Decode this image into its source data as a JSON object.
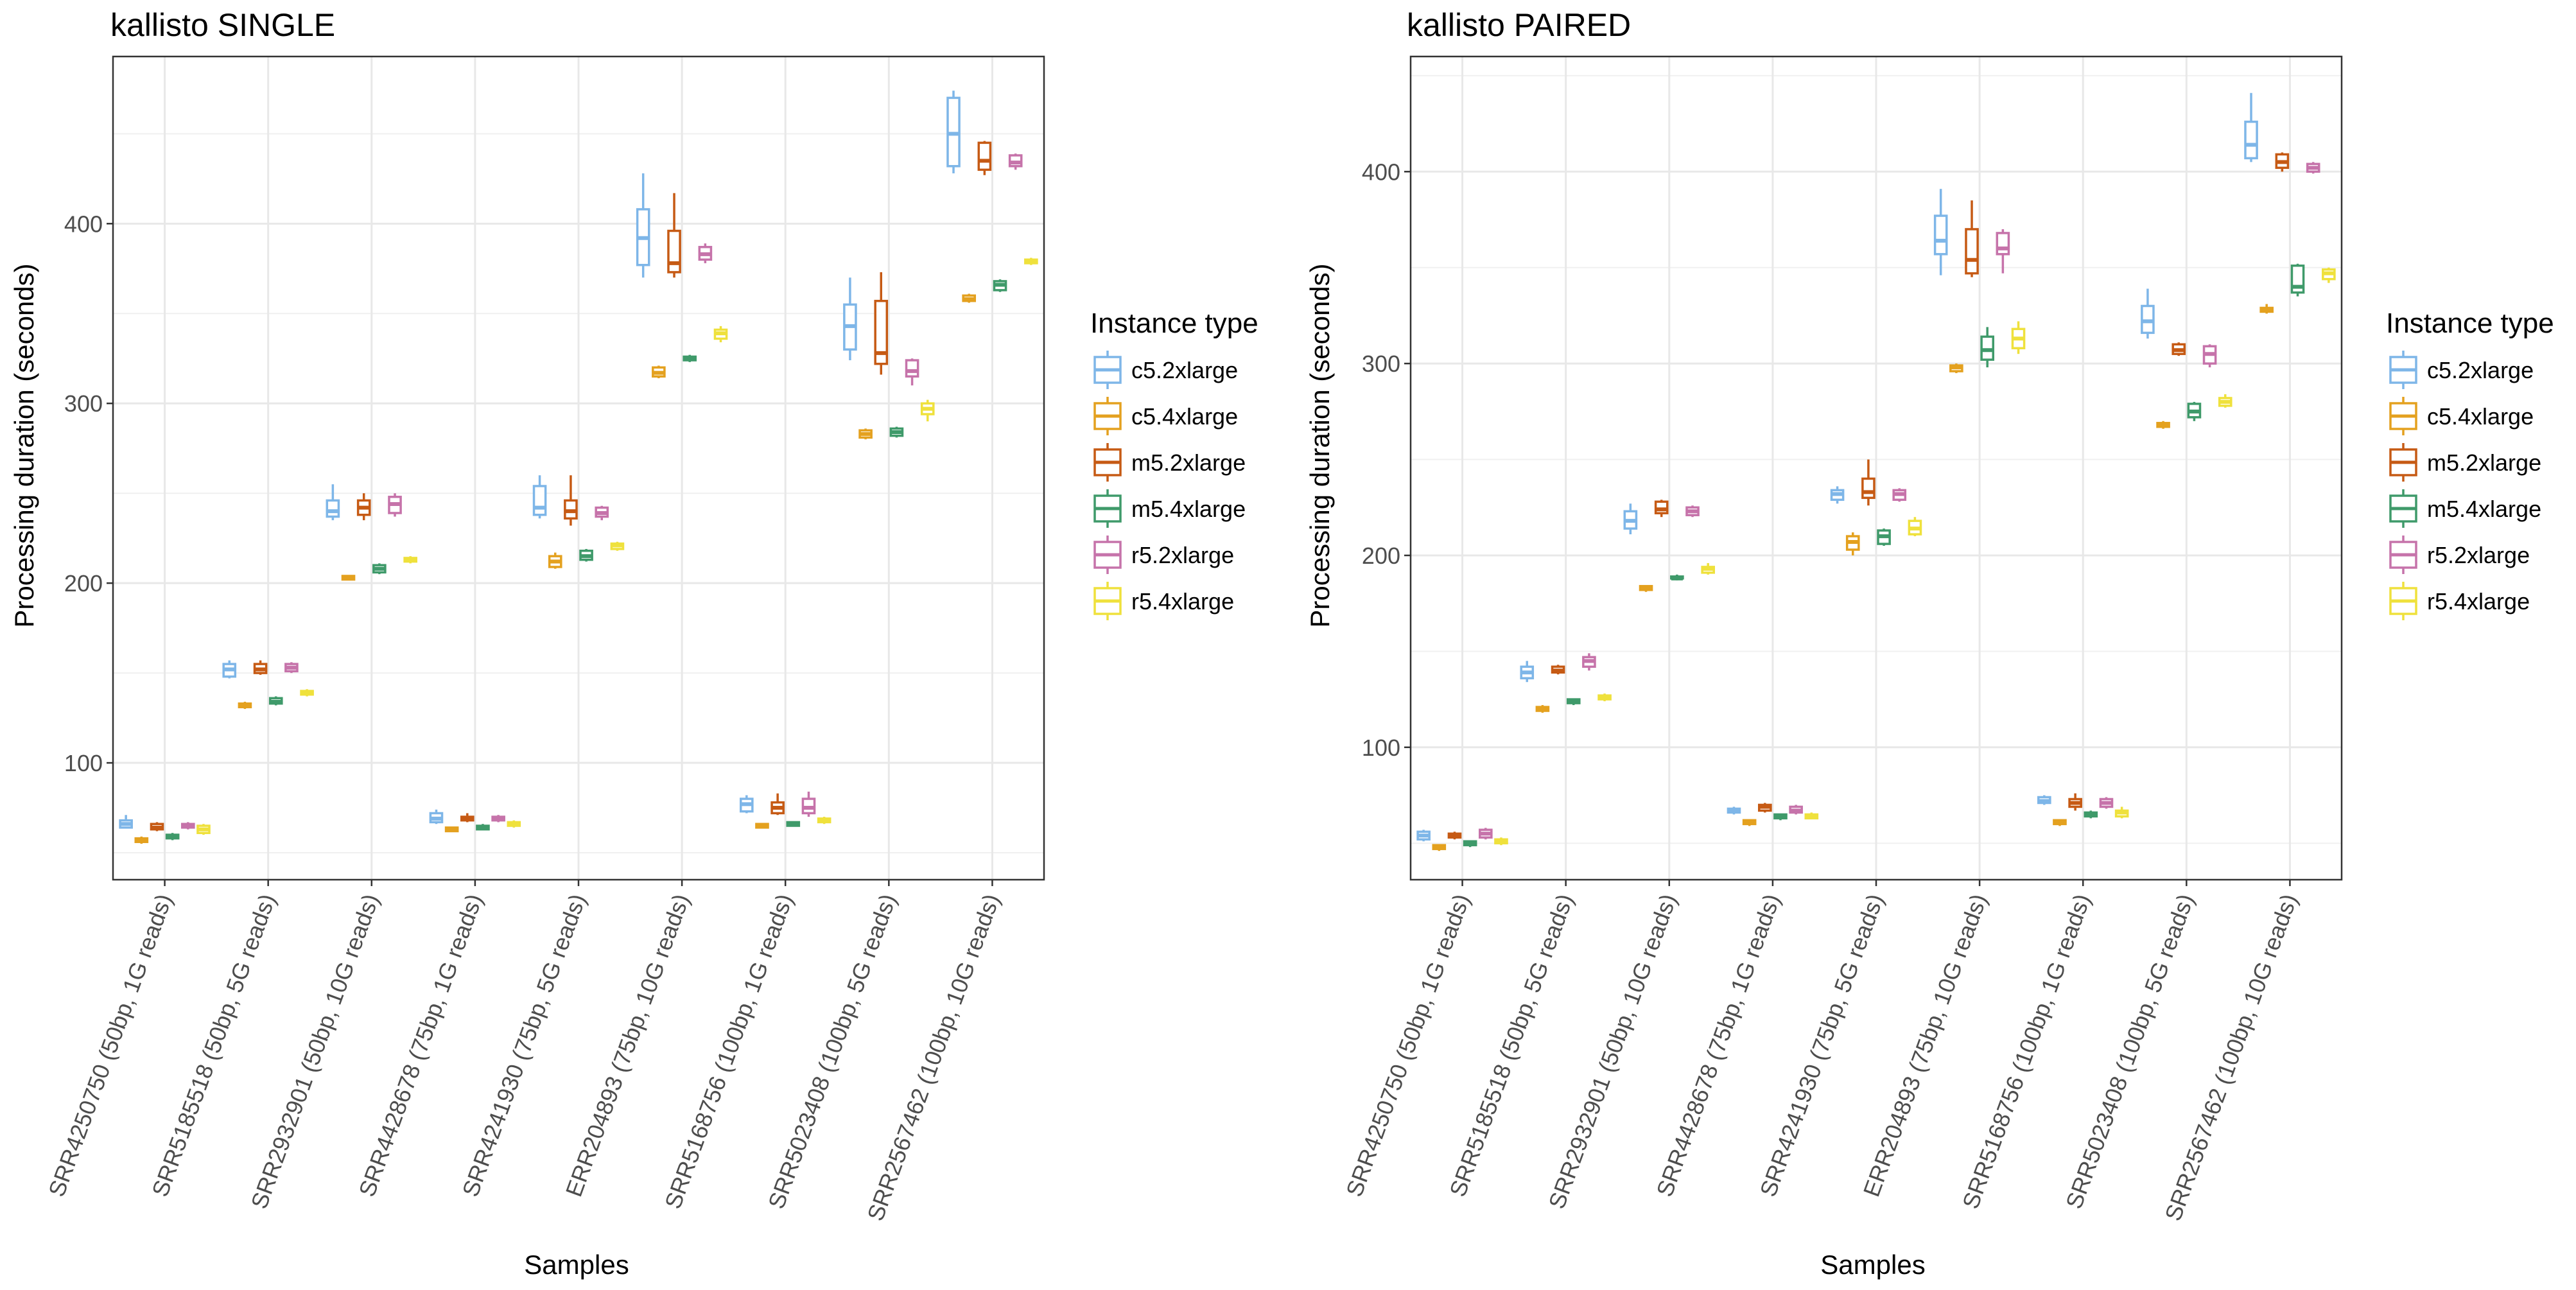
{
  "legend": {
    "title": "Instance type",
    "items": [
      {
        "label": "c5.2xlarge",
        "color": "#7EB6E8"
      },
      {
        "label": "c5.4xlarge",
        "color": "#E4A11F"
      },
      {
        "label": "m5.2xlarge",
        "color": "#C65A14"
      },
      {
        "label": "m5.4xlarge",
        "color": "#3F9A6A"
      },
      {
        "label": "r5.2xlarge",
        "color": "#C673AA"
      },
      {
        "label": "r5.4xlarge",
        "color": "#EFE13C"
      }
    ]
  },
  "chart_data": [
    {
      "type": "box",
      "title": "kallisto SINGLE",
      "xlabel": "Samples",
      "ylabel": "Processing duration (seconds)",
      "ylim": [
        35,
        493
      ],
      "yticks": [
        100,
        200,
        300,
        400
      ],
      "grid": true,
      "legend_position": "right",
      "categories": [
        "SRR4250750 (50bp, 1G reads)",
        "SRR5185518 (50bp, 5G reads)",
        "SRR2932901 (50bp, 10G reads)",
        "SRR4428678 (75bp, 1G reads)",
        "SRR4241930 (75bp, 5G reads)",
        "ERR204893 (75bp, 10G reads)",
        "SRR5168756 (100bp, 1G reads)",
        "SRR5023408 (100bp, 5G reads)",
        "SRR2567462 (100bp, 10G reads)"
      ],
      "series": [
        {
          "name": "c5.2xlarge",
          "boxes": [
            [
              64,
              64,
              66,
              68,
              71
            ],
            [
              147,
              148,
              152,
              155,
              157
            ],
            [
              235,
              237,
              240,
              246,
              255
            ],
            [
              66,
              67,
              69,
              72,
              74
            ],
            [
              236,
              238,
              242,
              254,
              260
            ],
            [
              370,
              377,
              392,
              408,
              428
            ],
            [
              72,
              73,
              77,
              80,
              82
            ],
            [
              324,
              330,
              343,
              355,
              370
            ],
            [
              428,
              432,
              450,
              470,
              474
            ]
          ]
        },
        {
          "name": "c5.4xlarge",
          "boxes": [
            [
              55,
              56,
              57,
              58,
              59
            ],
            [
              130,
              131,
              132,
              133,
              134
            ],
            [
              202,
              202,
              203,
              204,
              204
            ],
            [
              62,
              62,
              63,
              64,
              64
            ],
            [
              208,
              209,
              212,
              215,
              217
            ],
            [
              314,
              315,
              317,
              320,
              321
            ],
            [
              64,
              64,
              65,
              66,
              66
            ],
            [
              280,
              281,
              283,
              285,
              286
            ],
            [
              356,
              357,
              358,
              360,
              361
            ]
          ]
        },
        {
          "name": "m5.2xlarge",
          "boxes": [
            [
              62,
              63,
              64,
              66,
              67
            ],
            [
              149,
              150,
              152,
              155,
              157
            ],
            [
              235,
              238,
              242,
              246,
              250
            ],
            [
              67,
              68,
              69,
              70,
              72
            ],
            [
              232,
              236,
              240,
              246,
              260
            ],
            [
              370,
              373,
              378,
              396,
              417
            ],
            [
              71,
              72,
              75,
              78,
              83
            ],
            [
              316,
              322,
              328,
              357,
              373
            ],
            [
              427,
              430,
              435,
              445,
              446
            ]
          ]
        },
        {
          "name": "m5.4xlarge",
          "boxes": [
            [
              57,
              58,
              59,
              60,
              61
            ],
            [
              132,
              133,
              134,
              136,
              137
            ],
            [
              205,
              206,
              208,
              210,
              211
            ],
            [
              63,
              63,
              64,
              65,
              66
            ],
            [
              212,
              213,
              215,
              218,
              219
            ],
            [
              323,
              324,
              325,
              326,
              327
            ],
            [
              65,
              65,
              66,
              67,
              67
            ],
            [
              281,
              282,
              284,
              286,
              287
            ],
            [
              362,
              363,
              366,
              368,
              369
            ]
          ]
        },
        {
          "name": "r5.2xlarge",
          "boxes": [
            [
              63,
              64,
              65,
              66,
              67
            ],
            [
              150,
              151,
              153,
              155,
              156
            ],
            [
              237,
              239,
              244,
              248,
              250
            ],
            [
              67,
              68,
              69,
              70,
              71
            ],
            [
              235,
              237,
              239,
              242,
              243
            ],
            [
              378,
              380,
              383,
              387,
              389
            ],
            [
              70,
              72,
              75,
              80,
              84
            ],
            [
              310,
              315,
              318,
              324,
              325
            ],
            [
              430,
              432,
              434,
              438,
              439
            ]
          ]
        },
        {
          "name": "r5.4xlarge",
          "boxes": [
            [
              60,
              61,
              63,
              65,
              66
            ],
            [
              137,
              138,
              139,
              140,
              141
            ],
            [
              211,
              212,
              213,
              214,
              215
            ],
            [
              64,
              65,
              66,
              67,
              68
            ],
            [
              218,
              219,
              221,
              222,
              223
            ],
            [
              334,
              336,
              339,
              341,
              343
            ],
            [
              66,
              67,
              68,
              69,
              70
            ],
            [
              290,
              294,
              297,
              300,
              302
            ],
            [
              377,
              378,
              379,
              380,
              381
            ]
          ]
        }
      ]
    },
    {
      "type": "box",
      "title": "kallisto PAIRED",
      "xlabel": "Samples",
      "ylabel": "Processing duration (seconds)",
      "ylim": [
        31,
        460
      ],
      "yticks": [
        100,
        200,
        300,
        400
      ],
      "grid": true,
      "legend_position": "right",
      "categories": [
        "SRR4250750 (50bp, 1G reads)",
        "SRR5185518 (50bp, 5G reads)",
        "SRR2932901 (50bp, 10G reads)",
        "SRR4428678 (75bp, 1G reads)",
        "SRR4241930 (75bp, 5G reads)",
        "ERR204893 (75bp, 10G reads)",
        "SRR5168756 (100bp, 1G reads)",
        "SRR5023408 (100bp, 5G reads)",
        "SRR2567462 (100bp, 10G reads)"
      ],
      "series": [
        {
          "name": "c5.2xlarge",
          "boxes": [
            [
              51,
              52,
              54,
              56,
              57
            ],
            [
              134,
              136,
              139,
              142,
              145
            ],
            [
              211,
              214,
              218,
              223,
              227
            ],
            [
              65,
              66,
              67,
              68,
              69
            ],
            [
              227,
              229,
              232,
              234,
              236
            ],
            [
              346,
              357,
              364,
              377,
              391
            ],
            [
              70,
              71,
              72,
              74,
              75
            ],
            [
              313,
              316,
              322,
              330,
              339
            ],
            [
              405,
              407,
              414,
              426,
              441
            ]
          ]
        },
        {
          "name": "c5.4xlarge",
          "boxes": [
            [
              46,
              47,
              48,
              49,
              49
            ],
            [
              118,
              119,
              120,
              121,
              122
            ],
            [
              181,
              182,
              183,
              184,
              184
            ],
            [
              59,
              60,
              61,
              62,
              62
            ],
            [
              200,
              203,
              207,
              210,
              212
            ],
            [
              295,
              296,
              298,
              299,
              300
            ],
            [
              59,
              60,
              61,
              62,
              62
            ],
            [
              266,
              267,
              268,
              269,
              270
            ],
            [
              326,
              327,
              328,
              329,
              331
            ]
          ]
        },
        {
          "name": "m5.2xlarge",
          "boxes": [
            [
              52,
              53,
              54,
              55,
              56
            ],
            [
              138,
              139,
              140,
              142,
              143
            ],
            [
              220,
              222,
              224,
              228,
              229
            ],
            [
              66,
              67,
              69,
              70,
              71
            ],
            [
              226,
              230,
              233,
              240,
              250
            ],
            [
              345,
              347,
              354,
              370,
              385
            ],
            [
              67,
              69,
              71,
              73,
              76
            ],
            [
              304,
              305,
              307,
              310,
              311
            ],
            [
              400,
              402,
              405,
              409,
              410
            ]
          ]
        },
        {
          "name": "m5.4xlarge",
          "boxes": [
            [
              48,
              49,
              50,
              51,
              51
            ],
            [
              122,
              123,
              124,
              125,
              125
            ],
            [
              187,
              188,
              188,
              189,
              190
            ],
            [
              62,
              63,
              64,
              65,
              65
            ],
            [
              205,
              206,
              210,
              213,
              214
            ],
            [
              298,
              302,
              307,
              314,
              319
            ],
            [
              63,
              64,
              65,
              66,
              67
            ],
            [
              270,
              272,
              275,
              279,
              280
            ],
            [
              335,
              337,
              340,
              351,
              352
            ]
          ]
        },
        {
          "name": "r5.2xlarge",
          "boxes": [
            [
              52,
              53,
              55,
              57,
              58
            ],
            [
              140,
              142,
              145,
              147,
              149
            ],
            [
              220,
              221,
              223,
              225,
              226
            ],
            [
              65,
              66,
              67,
              69,
              70
            ],
            [
              228,
              229,
              232,
              234,
              235
            ],
            [
              347,
              357,
              360,
              368,
              370
            ],
            [
              68,
              69,
              71,
              73,
              74
            ],
            [
              298,
              300,
              305,
              309,
              310
            ],
            [
              399,
              400,
              402,
              404,
              405
            ]
          ]
        },
        {
          "name": "r5.4xlarge",
          "boxes": [
            [
              49,
              50,
              51,
              52,
              53
            ],
            [
              124,
              125,
              126,
              127,
              128
            ],
            [
              190,
              191,
              193,
              194,
              196
            ],
            [
              63,
              63,
              64,
              65,
              66
            ],
            [
              210,
              211,
              214,
              218,
              220
            ],
            [
              305,
              308,
              313,
              318,
              322
            ],
            [
              63,
              64,
              66,
              67,
              69
            ],
            [
              277,
              278,
              280,
              282,
              284
            ],
            [
              342,
              344,
              347,
              349,
              350
            ]
          ]
        }
      ]
    }
  ]
}
